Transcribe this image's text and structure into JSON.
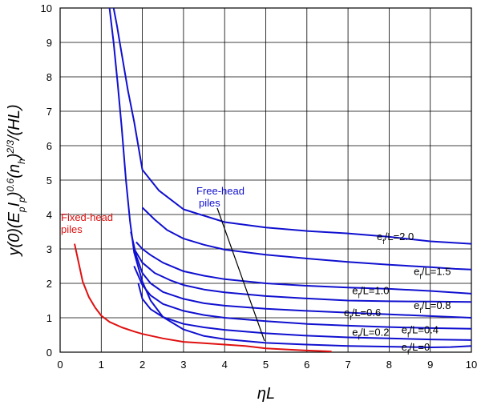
{
  "chart_data": {
    "type": "line",
    "xlabel": "ηL",
    "ylabel": "y(0)(EpIp)0.6(nh)2/3/(HL)",
    "xlim": [
      0,
      10
    ],
    "ylim": [
      0,
      10
    ],
    "xticks": [
      "0",
      "1",
      "2",
      "3",
      "4",
      "5",
      "6",
      "7",
      "8",
      "9",
      "10"
    ],
    "yticks": [
      "0",
      "1",
      "2",
      "3",
      "4",
      "5",
      "6",
      "7",
      "8",
      "9",
      "10"
    ],
    "grid": true,
    "colors": {
      "free_head": "#1010d0",
      "fixed_head": "#e01010",
      "grid": "#000000"
    },
    "annotations": {
      "free_head": {
        "line1": "Free-head",
        "line2": "piles",
        "color": "#1010d0"
      },
      "fixed_head": {
        "line1": "Fixed-head",
        "line2": "piles",
        "color": "#e01010"
      }
    },
    "series": [
      {
        "name": "ef/L=2.0",
        "label_prefix": "e",
        "label_sub": "f",
        "label_suffix": "/L=2.0",
        "group": "free",
        "x": [
          1.3,
          1.38,
          1.45,
          1.55,
          1.65,
          1.8,
          2.0,
          2.4,
          3.0,
          4.0,
          5.0,
          6.0,
          7.0,
          8.0,
          9.0,
          10.0
        ],
        "y": [
          10,
          9.5,
          9.0,
          8.3,
          7.6,
          6.7,
          5.3,
          4.7,
          4.15,
          3.78,
          3.62,
          3.52,
          3.45,
          3.35,
          3.22,
          3.15
        ]
      },
      {
        "name": "ef/L=1.5",
        "label_prefix": "e",
        "label_sub": "f",
        "label_suffix": "/L=1.5",
        "group": "free",
        "x": [
          2.0,
          2.3,
          2.6,
          3.0,
          3.5,
          4.0,
          5.0,
          6.0,
          7.0,
          8.0,
          9.0,
          9.6,
          10.0
        ],
        "y": [
          4.2,
          3.85,
          3.55,
          3.3,
          3.12,
          2.98,
          2.83,
          2.72,
          2.62,
          2.54,
          2.47,
          2.42,
          2.4
        ]
      },
      {
        "name": "ef/L=1.0",
        "label_prefix": "e",
        "label_sub": "f",
        "label_suffix": "/L=1.0",
        "group": "free",
        "x": [
          1.85,
          2.0,
          2.2,
          2.5,
          3.0,
          3.5,
          4.0,
          5.0,
          6.0,
          7.0,
          8.0,
          9.0,
          10.0
        ],
        "y": [
          3.2,
          3.0,
          2.82,
          2.6,
          2.35,
          2.22,
          2.12,
          2.0,
          1.93,
          1.88,
          1.84,
          1.78,
          1.7
        ]
      },
      {
        "name": "ef/L=0.8",
        "label_prefix": "e",
        "label_sub": "f",
        "label_suffix": "/L=0.8",
        "group": "free",
        "x": [
          1.8,
          2.0,
          2.3,
          2.7,
          3.0,
          3.5,
          4.0,
          5.0,
          6.0,
          7.0,
          8.0,
          9.0,
          10.0
        ],
        "y": [
          3.0,
          2.6,
          2.3,
          2.08,
          1.95,
          1.82,
          1.74,
          1.63,
          1.56,
          1.5,
          1.48,
          1.47,
          1.46
        ]
      },
      {
        "name": "ef/L=0.6",
        "label_prefix": "e",
        "label_sub": "f",
        "label_suffix": "/L=0.6",
        "group": "free",
        "x": [
          1.72,
          1.85,
          2.0,
          2.2,
          2.5,
          3.0,
          3.5,
          4.0,
          5.0,
          6.0,
          7.0,
          8.0,
          9.0,
          10.0
        ],
        "y": [
          3.5,
          2.8,
          2.3,
          2.0,
          1.75,
          1.55,
          1.42,
          1.35,
          1.26,
          1.2,
          1.15,
          1.1,
          1.05,
          1.0
        ]
      },
      {
        "name": "ef/L=0.4",
        "label_prefix": "e",
        "label_sub": "f",
        "label_suffix": "/L=0.4",
        "group": "free",
        "x": [
          1.8,
          2.0,
          2.2,
          2.5,
          3.0,
          3.5,
          4.0,
          5.0,
          6.0,
          7.0,
          8.0,
          9.0,
          10.0
        ],
        "y": [
          2.5,
          1.95,
          1.65,
          1.4,
          1.2,
          1.08,
          1.0,
          0.9,
          0.82,
          0.77,
          0.73,
          0.7,
          0.68
        ]
      },
      {
        "name": "ef/L=0.2",
        "label_prefix": "e",
        "label_sub": "f",
        "label_suffix": "/L=0.2",
        "group": "free",
        "x": [
          1.9,
          2.0,
          2.2,
          2.5,
          3.0,
          3.5,
          4.0,
          5.0,
          6.0,
          7.0,
          8.0,
          9.0,
          10.0
        ],
        "y": [
          2.0,
          1.55,
          1.25,
          1.02,
          0.82,
          0.72,
          0.65,
          0.55,
          0.48,
          0.43,
          0.4,
          0.37,
          0.35
        ]
      },
      {
        "name": "ef/L=0",
        "label_prefix": "e",
        "label_sub": "f",
        "label_suffix": "/L=0",
        "group": "free",
        "x": [
          1.2,
          1.3,
          1.4,
          1.5,
          1.6,
          1.7,
          1.8,
          2.0,
          2.2,
          2.5,
          3.0,
          3.5,
          4.0,
          5.0,
          6.0,
          7.0,
          8.0,
          9.0,
          9.5,
          10.0
        ],
        "y": [
          10.0,
          9.0,
          7.8,
          6.5,
          5.0,
          3.8,
          2.9,
          2.05,
          1.5,
          1.02,
          0.66,
          0.47,
          0.38,
          0.27,
          0.22,
          0.18,
          0.16,
          0.14,
          0.15,
          0.18
        ]
      },
      {
        "name": "Fixed-head piles",
        "group": "fixed",
        "x": [
          0.35,
          0.45,
          0.55,
          0.7,
          0.85,
          1.0,
          1.2,
          1.5,
          1.8,
          2.0,
          2.5,
          3.0,
          3.5,
          4.0,
          4.5,
          5.0,
          5.5,
          6.0,
          6.6
        ],
        "y": [
          3.15,
          2.6,
          2.05,
          1.6,
          1.3,
          1.06,
          0.88,
          0.72,
          0.6,
          0.53,
          0.4,
          0.3,
          0.26,
          0.22,
          0.18,
          0.11,
          0.08,
          0.05,
          0.02
        ]
      }
    ]
  }
}
